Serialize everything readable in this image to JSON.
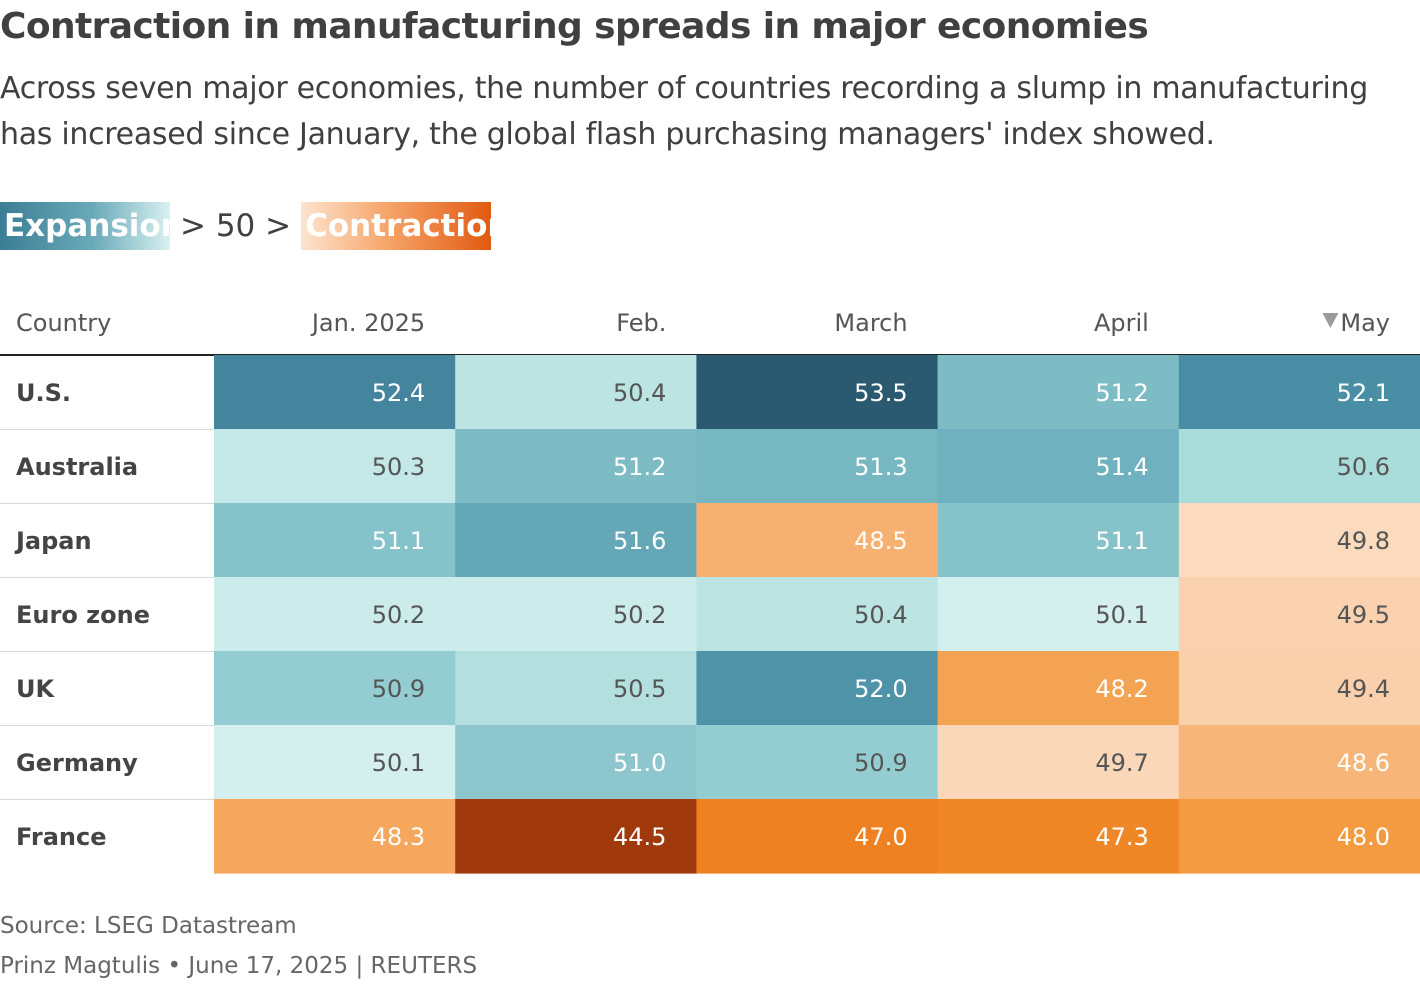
{
  "chart_data": {
    "type": "heatmap",
    "title": "Contraction in manufacturing spreads in major economies",
    "subtitle": "Across seven major economies, the number of countries recording a slump in manufacturing has increased since January, the global flash purchasing managers' index showed.",
    "legend": {
      "expansion_label": "Expansion",
      "separator": "> 50 >",
      "contraction_label": "Contraction"
    },
    "row_header": "Country",
    "columns": [
      "Jan. 2025",
      "Feb.",
      "March",
      "April",
      "May"
    ],
    "sorted_column": "May",
    "sort_direction": "descending",
    "threshold": 50,
    "rows": [
      {
        "country": "U.S.",
        "values": [
          52.4,
          50.4,
          53.5,
          51.2,
          52.1
        ]
      },
      {
        "country": "Australia",
        "values": [
          50.3,
          51.2,
          51.3,
          51.4,
          50.6
        ]
      },
      {
        "country": "Japan",
        "values": [
          51.1,
          51.6,
          48.5,
          51.1,
          49.8
        ]
      },
      {
        "country": "Euro zone",
        "values": [
          50.2,
          50.2,
          50.4,
          50.1,
          49.5
        ]
      },
      {
        "country": "UK",
        "values": [
          50.9,
          50.5,
          52.0,
          48.2,
          49.4
        ]
      },
      {
        "country": "Germany",
        "values": [
          50.1,
          51.0,
          50.9,
          49.7,
          48.6
        ]
      },
      {
        "country": "France",
        "values": [
          48.3,
          44.5,
          47.0,
          47.3,
          48.0
        ]
      }
    ],
    "value_decimals": 1
  },
  "footer": {
    "source": "Source: LSEG Datastream",
    "byline": "Prinz Magtulis • June 17, 2025 | REUTERS"
  },
  "icons": {
    "sort": "sort-descending-triangle-icon"
  },
  "colors": {
    "expansion_scale": [
      "#dcf3f2",
      "#a3d8d8",
      "#6fb1be",
      "#4a8ea6",
      "#3b7792",
      "#2b5a70"
    ],
    "contraction_scale": [
      "#fddfc6",
      "#f7c295",
      "#f3922e",
      "#ec7a1d",
      "#e45d12",
      "#a03a0c"
    ],
    "sort_icon": "#9a9a9a"
  }
}
